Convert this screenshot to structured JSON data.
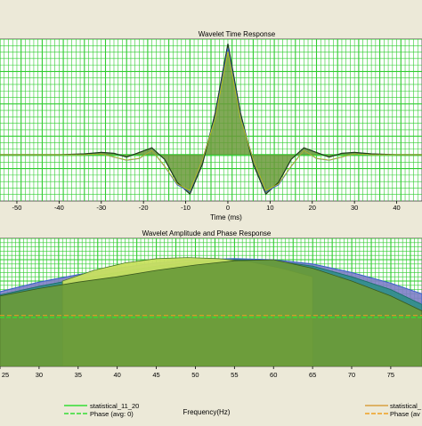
{
  "colors": {
    "background": "#ece9d8",
    "plot_bg": "#ffffff",
    "grid": "#2ecc2e",
    "fill_green": "#6a9a3a",
    "fill_light": "#c8e060",
    "line_blue": "#3b63c9",
    "line_teal": "#2e8f88",
    "line_purple": "#7e7ec8",
    "line_dark": "#1b3b1b",
    "phase_green": "#33dd33",
    "phase_orange": "#f0a020",
    "legend_orange": "#d8a040"
  },
  "chart_data": [
    {
      "type": "line",
      "title": "Wavelet Time Response",
      "xlabel": "Time (ms)",
      "ylabel": "",
      "xlim": [
        -54,
        46
      ],
      "ylim": [
        -1.0,
        2.5
      ],
      "grid": true,
      "x_ticks": [
        -50,
        -40,
        -30,
        -20,
        -10,
        0,
        10,
        20,
        30,
        40
      ],
      "x_tick_labels": [
        "-50",
        "-40",
        "-30",
        "-20",
        "-10",
        "0",
        "10",
        "20",
        "30",
        "40"
      ],
      "series": [
        {
          "role": "filled wavelet",
          "x": [
            -54,
            -40,
            -34,
            -30,
            -27,
            -24,
            -21,
            -18,
            -15,
            -12,
            -9,
            -6,
            -3,
            0,
            3,
            6,
            9,
            12,
            15,
            18,
            21,
            24,
            27,
            30,
            34,
            40,
            46
          ],
          "values": [
            0,
            0,
            0.02,
            0.05,
            0.03,
            -0.05,
            0.05,
            0.15,
            -0.1,
            -0.6,
            -0.85,
            -0.2,
            0.9,
            2.4,
            0.9,
            -0.2,
            -0.85,
            -0.6,
            -0.1,
            0.15,
            0.05,
            -0.05,
            0.03,
            0.05,
            0.02,
            0,
            0
          ]
        },
        {
          "role": "overlay line",
          "x": [
            -54,
            -40,
            -34,
            -30,
            -27,
            -24,
            -21,
            -18,
            -15,
            -12,
            -9,
            -6,
            -3,
            0,
            3,
            6,
            9,
            12,
            15,
            18,
            21,
            24,
            27,
            30,
            34,
            40,
            46
          ],
          "values": [
            0,
            0,
            0.0,
            0.02,
            -0.05,
            -0.12,
            -0.08,
            0.1,
            -0.25,
            -0.65,
            -0.8,
            -0.1,
            0.8,
            2.3,
            0.8,
            -0.1,
            -0.8,
            -0.65,
            -0.25,
            0.1,
            -0.08,
            -0.12,
            -0.05,
            0.02,
            0.0,
            0,
            0
          ]
        }
      ]
    },
    {
      "type": "area",
      "title": "Wavelet Amplitude and Phase Response",
      "xlabel": "Frequency(Hz)",
      "ylabel": "",
      "xlim": [
        25,
        79
      ],
      "ylim": [
        0,
        1.2
      ],
      "grid": true,
      "x_ticks": [
        25,
        30,
        35,
        40,
        45,
        50,
        55,
        60,
        65,
        70,
        75
      ],
      "x_tick_labels": [
        "25",
        "30",
        "35",
        "40",
        "45",
        "50",
        "55",
        "60",
        "65",
        "70",
        "75"
      ],
      "series": [
        {
          "role": "amplitude outer (blue/purple)",
          "x": [
            25,
            30,
            35,
            40,
            45,
            50,
            55,
            60,
            65,
            70,
            75,
            79
          ],
          "values": [
            0.7,
            0.79,
            0.86,
            0.92,
            0.97,
            1.0,
            1.01,
            1.0,
            0.96,
            0.88,
            0.78,
            0.68
          ]
        },
        {
          "role": "amplitude inner (teal)",
          "x": [
            25,
            30,
            35,
            40,
            45,
            50,
            55,
            60,
            65,
            70,
            75,
            79
          ],
          "values": [
            0.67,
            0.75,
            0.82,
            0.88,
            0.94,
            0.98,
            1.0,
            0.99,
            0.94,
            0.84,
            0.72,
            0.58
          ]
        },
        {
          "role": "amplitude dark fill",
          "x": [
            25,
            30,
            35,
            40,
            45,
            50,
            55,
            60,
            65,
            70,
            75,
            79
          ],
          "values": [
            0.66,
            0.73,
            0.79,
            0.84,
            0.9,
            0.95,
            0.99,
            1.0,
            0.92,
            0.8,
            0.66,
            0.52
          ]
        },
        {
          "role": "light green bump",
          "x": [
            33,
            37,
            41,
            45,
            49,
            53,
            57,
            61,
            65
          ],
          "values": [
            0.8,
            0.9,
            0.97,
            1.01,
            1.02,
            1.01,
            0.98,
            0.92,
            0.84
          ]
        },
        {
          "role": "phase level",
          "x": [
            25,
            79
          ],
          "values": [
            0.46,
            0.46
          ]
        }
      ],
      "legend": {
        "placement": "bottom",
        "entries": [
          "statistical_11_20",
          "Phase (avg: 0)",
          "statistical_",
          "Phase (av"
        ]
      }
    }
  ]
}
